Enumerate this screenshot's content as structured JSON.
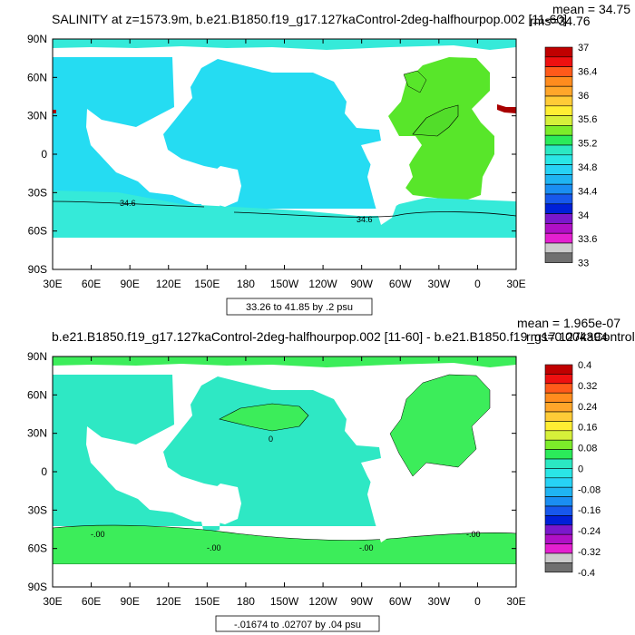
{
  "chart_data": [
    {
      "type": "heatmap",
      "title": "SALINITY at z=1573.9m, b.e21.B1850.f19_g17.127kaControl-2deg-halfhourpop.002 [11-60]",
      "stats_mean": "mean = 34.75",
      "stats_rms": "rms=34.76",
      "range_note": "33.26 to 41.85 by .2 psu",
      "x_ticks": [
        "30E",
        "60E",
        "90E",
        "120E",
        "150E",
        "180",
        "150W",
        "120W",
        "90W",
        "60W",
        "30W",
        "0",
        "30E"
      ],
      "y_ticks": [
        "90N",
        "60N",
        "30N",
        "0",
        "30S",
        "60S",
        "90S"
      ],
      "contour_labels": [
        "34.6",
        "34.6"
      ],
      "colorbar": {
        "labels": [
          "37",
          "36.4",
          "36",
          "35.6",
          "35.2",
          "34.8",
          "34.4",
          "34",
          "33.6",
          "33"
        ],
        "colors": [
          "#c00000",
          "#ee1010",
          "#ff5a1a",
          "#ff8c1e",
          "#ffa62a",
          "#ffcb37",
          "#ffee33",
          "#d6f03a",
          "#7cec2a",
          "#2bea5a",
          "#2be8c3",
          "#2ae6e6",
          "#27d2f5",
          "#1fb4f2",
          "#1a8ef2",
          "#1758ec",
          "#0020d8",
          "#7a18cc",
          "#b010c6",
          "#e420d0",
          "#cccccc",
          "#707070"
        ]
      },
      "regions": {
        "indo_pacific": "#25dcf2",
        "atlantic": "#58e62a",
        "north_atlantic_core": "#52dd2a",
        "southern_ocean": "#35ead9",
        "marginal_seas": "#a80000",
        "ocean_default": "#2bdfe3"
      }
    },
    {
      "type": "heatmap",
      "title": "b.e21.B1850.f19_g17.127kaControl-2deg-halfhourpop.002 [11-60] - b.e21.B1850.f19_g17.127kaControl",
      "stats_mean": "mean = 1.965e-07",
      "stats_rms": "rms=0.004394",
      "range_note": "-.01674 to .02707 by .04 psu",
      "x_ticks": [
        "30E",
        "60E",
        "90E",
        "120E",
        "150E",
        "180",
        "150W",
        "120W",
        "90W",
        "60W",
        "30W",
        "0",
        "30E"
      ],
      "y_ticks": [
        "90N",
        "60N",
        "30N",
        "0",
        "30S",
        "60S",
        "90S"
      ],
      "contour_labels": [
        "0",
        "-.00",
        "-.00",
        "-.00",
        "-.00"
      ],
      "colorbar": {
        "labels": [
          "0.4",
          "0.32",
          "0.24",
          "0.16",
          "0.08",
          "0",
          "-0.08",
          "-0.16",
          "-0.24",
          "-0.32",
          "-0.4"
        ],
        "colors": [
          "#c00000",
          "#ee1010",
          "#ff5a1a",
          "#ff8c1e",
          "#ffa62a",
          "#ffcb37",
          "#ffee33",
          "#d6f03a",
          "#7cec2a",
          "#2bea5a",
          "#2be8c3",
          "#2ae6e6",
          "#27d2f5",
          "#1fb4f2",
          "#1a8ef2",
          "#1758ec",
          "#0020d8",
          "#7a18cc",
          "#b010c6",
          "#e420d0",
          "#cccccc",
          "#707070"
        ]
      },
      "regions": {
        "ocean": "#2ee8c4",
        "positive": "#3ced5a"
      }
    }
  ]
}
